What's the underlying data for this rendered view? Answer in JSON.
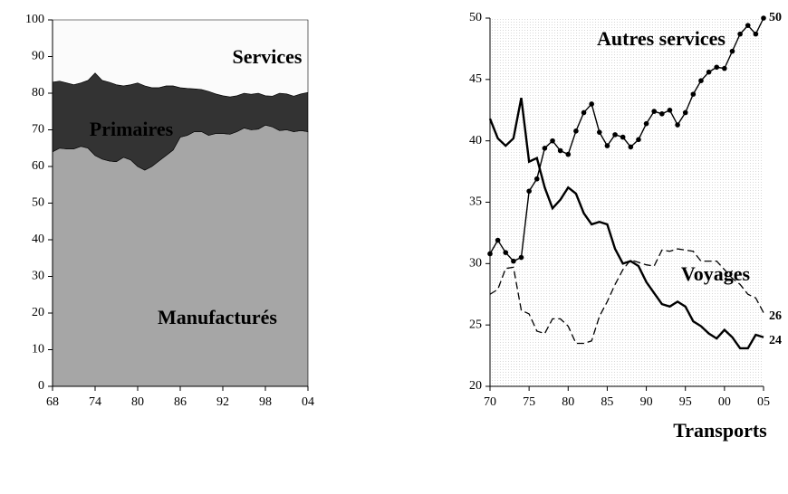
{
  "chart_data": [
    {
      "type": "area",
      "x": [
        1968,
        1969,
        1970,
        1971,
        1972,
        1973,
        1974,
        1975,
        1976,
        1977,
        1978,
        1979,
        1980,
        1981,
        1982,
        1983,
        1984,
        1985,
        1986,
        1987,
        1988,
        1989,
        1990,
        1991,
        1992,
        1993,
        1994,
        1995,
        1996,
        1997,
        1998,
        1999,
        2000,
        2001,
        2002,
        2003,
        2004
      ],
      "series": [
        {
          "name": "Manufacturés",
          "color": "#a6a6a6",
          "values": [
            64,
            65,
            64.8,
            64.8,
            65.5,
            65,
            63,
            62,
            61.5,
            61.3,
            62.5,
            61.8,
            60,
            59,
            60,
            61.5,
            63,
            64.5,
            68,
            68.5,
            69.5,
            69.5,
            68.5,
            69,
            69,
            68.8,
            69.5,
            70.5,
            70,
            70.2,
            71.3,
            70.8,
            69.8,
            70,
            69.5,
            69.8,
            69.5
          ]
        },
        {
          "name": "Primaires",
          "color": "#333333",
          "values": [
            19,
            18.3,
            18,
            17.5,
            17.3,
            18.5,
            22.5,
            21.5,
            21.5,
            21,
            19.5,
            20.5,
            22.8,
            23,
            21.5,
            20,
            19,
            17.5,
            13.5,
            12.8,
            11.7,
            11.5,
            12,
            10.8,
            10.3,
            10.2,
            9.8,
            9.5,
            9.7,
            9.8,
            8,
            8.4,
            10.2,
            9.8,
            9.7,
            10,
            10.7
          ]
        },
        {
          "name": "Services",
          "color": "#fbfbfb",
          "values": [
            17,
            16.7,
            17.2,
            17.7,
            17.2,
            16.5,
            14.5,
            16.5,
            17,
            17.7,
            18,
            17.7,
            17.2,
            18,
            18.5,
            18.5,
            18,
            18,
            18.5,
            18.7,
            18.8,
            19,
            19.5,
            20.2,
            20.7,
            21,
            20.7,
            20,
            20.3,
            20,
            20.7,
            20.8,
            20,
            20.2,
            20.8,
            20.2,
            19.8
          ]
        }
      ],
      "xlim": [
        1968,
        2004
      ],
      "xticks": [
        {
          "value": 1968,
          "label": "68"
        },
        {
          "value": 1974,
          "label": "74"
        },
        {
          "value": 1980,
          "label": "80"
        },
        {
          "value": 1986,
          "label": "86"
        },
        {
          "value": 1992,
          "label": "92"
        },
        {
          "value": 1998,
          "label": "98"
        },
        {
          "value": 2004,
          "label": "04"
        }
      ],
      "ylim": [
        0,
        100
      ],
      "yticks": [
        0,
        10,
        20,
        30,
        40,
        50,
        60,
        70,
        80,
        90,
        100
      ]
    },
    {
      "type": "line",
      "x": [
        1970,
        1971,
        1972,
        1973,
        1974,
        1975,
        1976,
        1977,
        1978,
        1979,
        1980,
        1981,
        1982,
        1983,
        1984,
        1985,
        1986,
        1987,
        1988,
        1989,
        1990,
        1991,
        1992,
        1993,
        1994,
        1995,
        1996,
        1997,
        1998,
        1999,
        2000,
        2001,
        2002,
        2003,
        2004,
        2005
      ],
      "series": [
        {
          "name": "Autres services",
          "color": "#000000",
          "markers": true,
          "values": [
            30.8,
            31.9,
            30.9,
            30.2,
            30.5,
            35.9,
            36.9,
            39.4,
            40,
            39.2,
            38.9,
            40.8,
            42.3,
            43,
            40.7,
            39.6,
            40.5,
            40.3,
            39.5,
            40.1,
            41.4,
            42.4,
            42.2,
            42.5,
            41.3,
            42.3,
            43.8,
            44.9,
            45.6,
            46,
            45.9,
            47.3,
            48.7,
            49.4,
            48.7,
            50
          ]
        },
        {
          "name": "Voyages",
          "color": "#000000",
          "line_style": "dashed",
          "values": [
            27.5,
            27.9,
            29.6,
            29.7,
            26.2,
            25.9,
            24.5,
            24.3,
            25.5,
            25.5,
            24.9,
            23.5,
            23.5,
            23.7,
            25.7,
            26.9,
            28.3,
            29.5,
            30.3,
            30.1,
            29.9,
            29.8,
            31.1,
            31,
            31.2,
            31.1,
            31,
            30.2,
            30.2,
            30.2,
            29.5,
            28.8,
            28.3,
            27.5,
            27.2,
            26
          ]
        },
        {
          "name": "Transports",
          "color": "#000000",
          "values": [
            41.8,
            40.2,
            39.6,
            40.2,
            43.5,
            38.3,
            38.6,
            36.2,
            34.5,
            35.2,
            36.2,
            35.7,
            34.1,
            33.2,
            33.4,
            33.2,
            31.2,
            30,
            30.2,
            29.8,
            28.5,
            27.6,
            26.7,
            26.5,
            26.9,
            26.5,
            25.3,
            24.9,
            24.3,
            23.9,
            24.6,
            24,
            23.1,
            23.1,
            24.2,
            24
          ]
        }
      ],
      "xlim": [
        1970,
        2005
      ],
      "xticks": [
        {
          "value": 1970,
          "label": "70"
        },
        {
          "value": 1975,
          "label": "75"
        },
        {
          "value": 1980,
          "label": "80"
        },
        {
          "value": 1985,
          "label": "85"
        },
        {
          "value": 1990,
          "label": "90"
        },
        {
          "value": 1995,
          "label": "95"
        },
        {
          "value": 2000,
          "label": "00"
        },
        {
          "value": 2005,
          "label": "05"
        }
      ],
      "ylim": [
        20,
        50
      ],
      "yticks": [
        20,
        25,
        30,
        35,
        40,
        45,
        50
      ]
    }
  ]
}
